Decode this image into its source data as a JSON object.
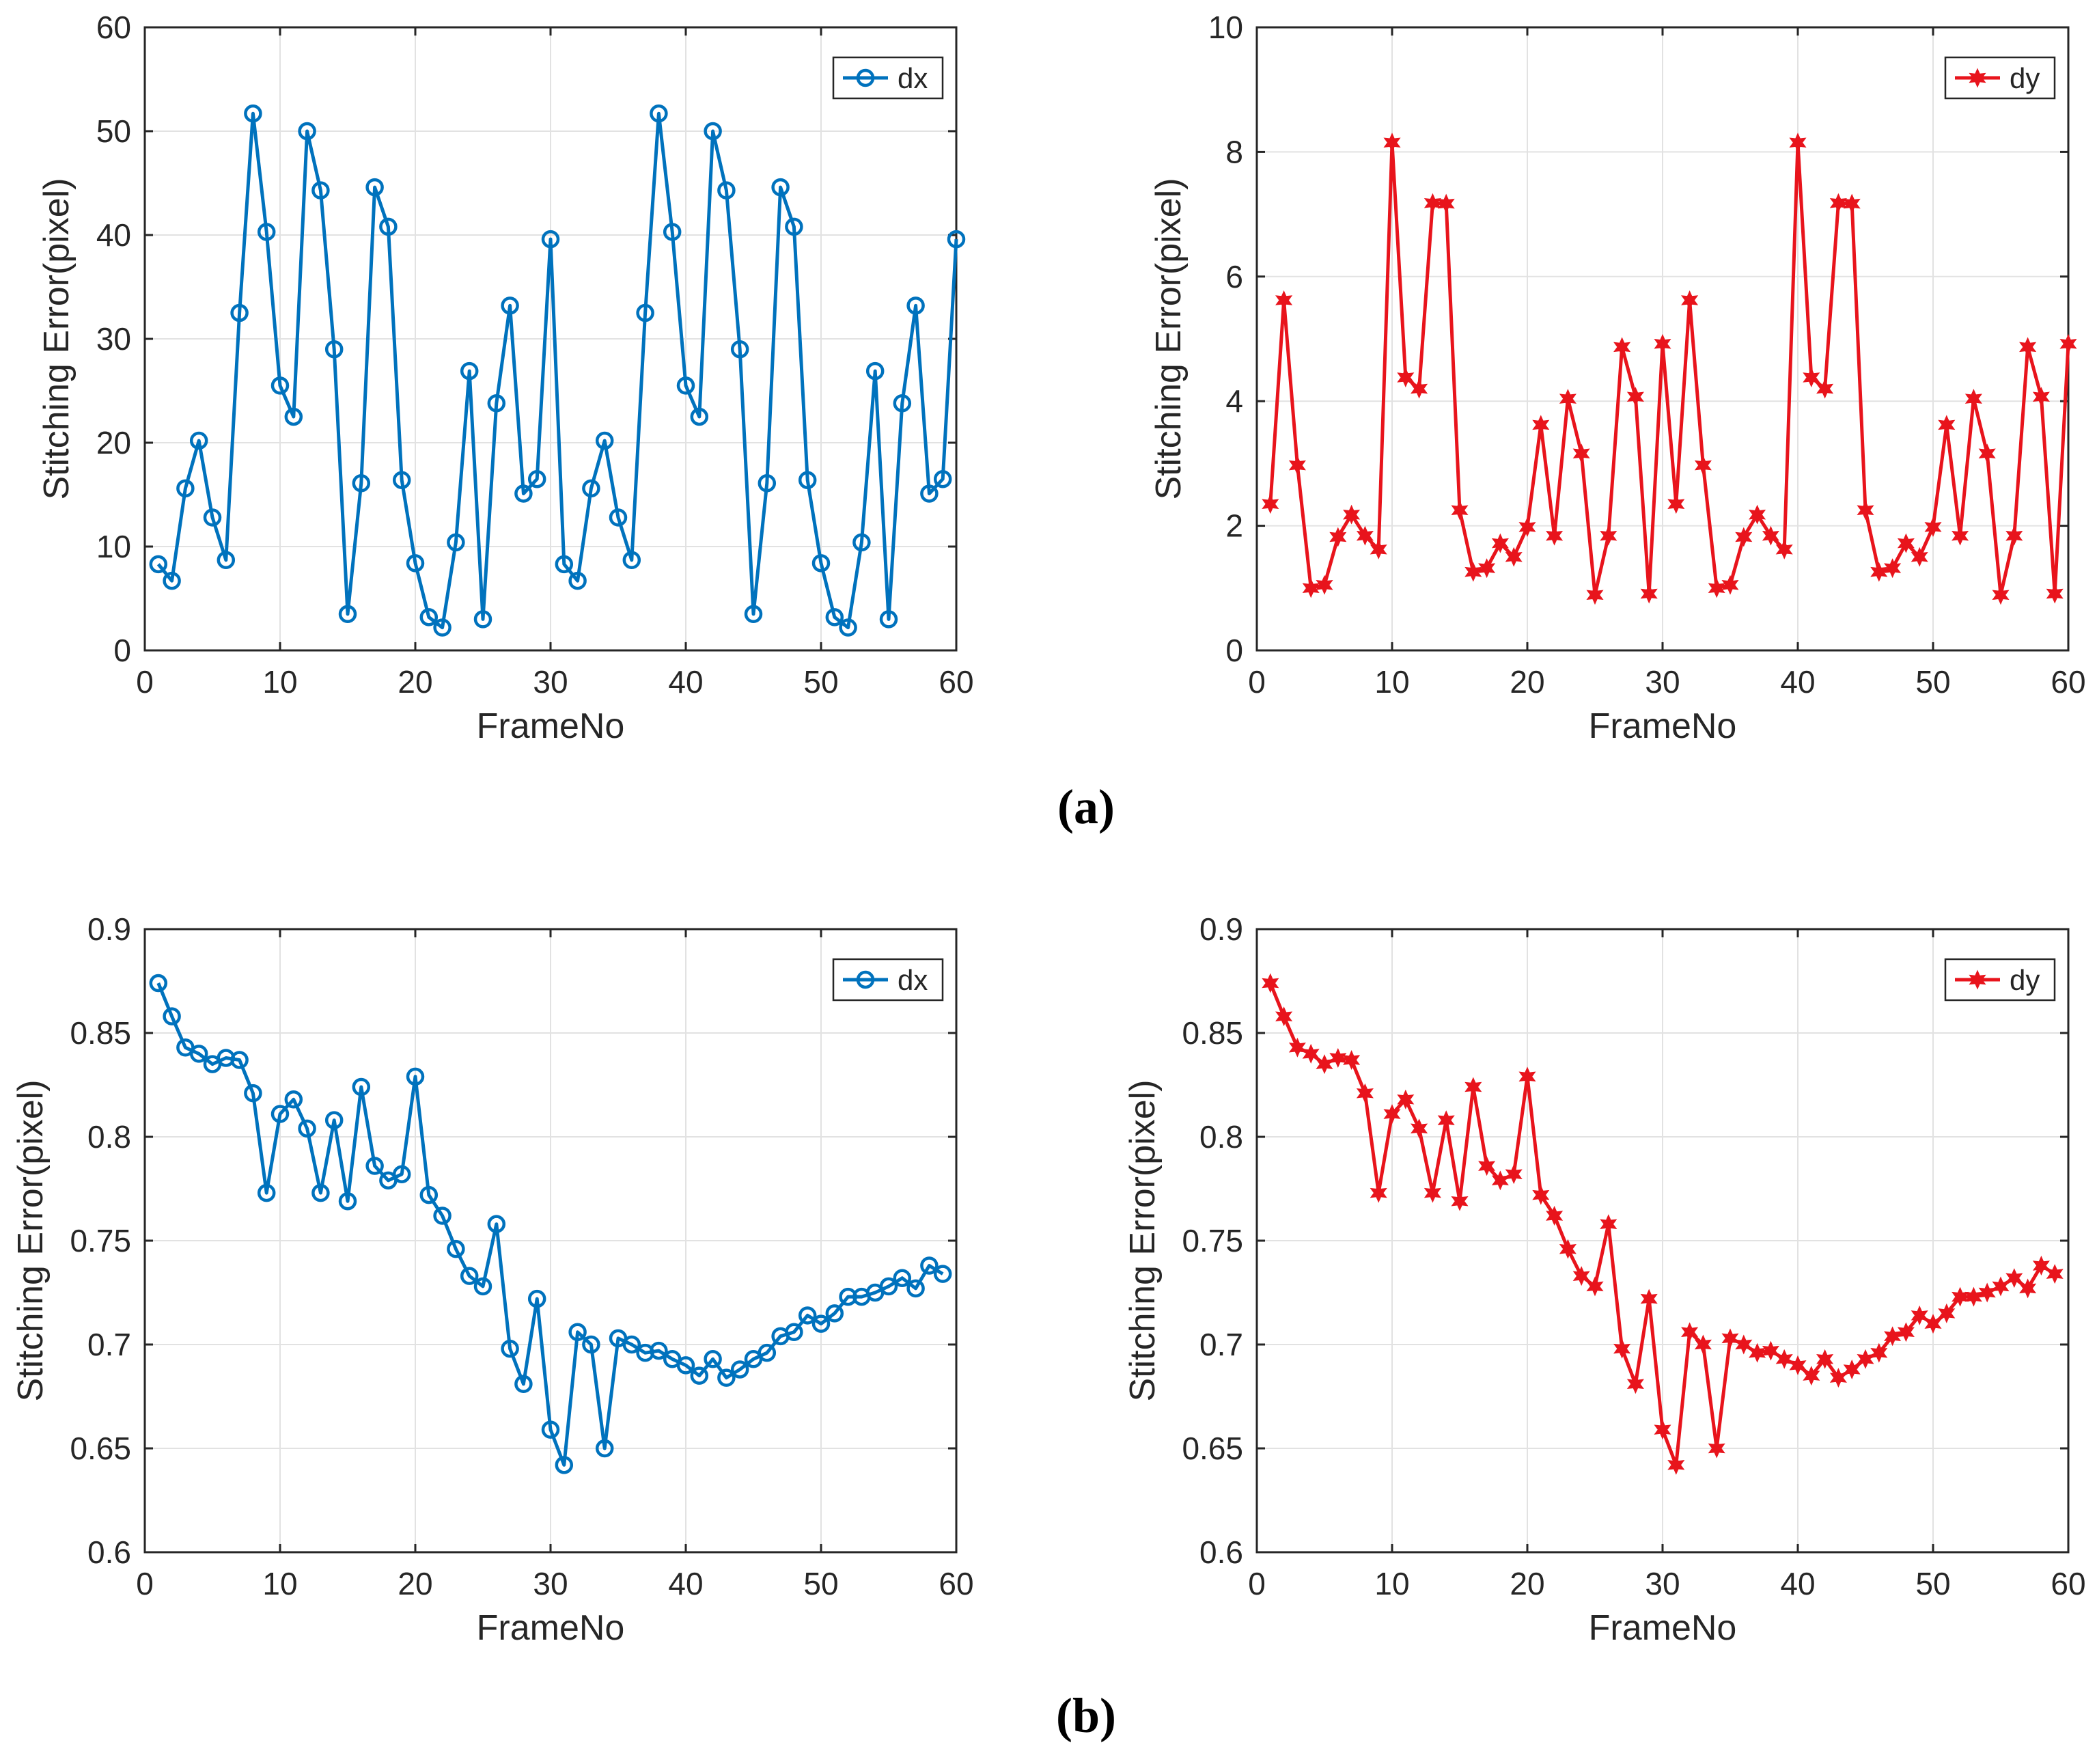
{
  "figure": {
    "captions": [
      "(a)",
      "(b)"
    ]
  },
  "chart_data": [
    {
      "type": "line",
      "panel": "a-left",
      "title": "",
      "xlabel": "FrameNo",
      "ylabel": "Stitching Error(pixel)",
      "xlim": [
        0,
        60
      ],
      "ylim": [
        0,
        60
      ],
      "xticks": [
        0,
        10,
        20,
        30,
        40,
        50,
        60
      ],
      "yticks": [
        0,
        10,
        20,
        30,
        40,
        50,
        60
      ],
      "grid": true,
      "legend": "top-right",
      "series": [
        {
          "name": "dx",
          "color": "#0072BD",
          "marker": "circle",
          "x": [
            1,
            2,
            3,
            4,
            5,
            6,
            7,
            8,
            9,
            10,
            11,
            12,
            13,
            14,
            15,
            16,
            17,
            18,
            19,
            20,
            21,
            22,
            23,
            24,
            25,
            26,
            27,
            28,
            29,
            30,
            31,
            32,
            33,
            34,
            35,
            36,
            37,
            38,
            39,
            40,
            41,
            42,
            43,
            44,
            45,
            46,
            47,
            48,
            49,
            50,
            51,
            52,
            53,
            54,
            55,
            56,
            57,
            58,
            59,
            60
          ],
          "values": [
            8.3,
            6.7,
            15.6,
            20.2,
            12.8,
            8.7,
            32.5,
            51.7,
            40.3,
            25.5,
            22.5,
            50.0,
            44.3,
            29.0,
            3.5,
            16.1,
            44.6,
            40.8,
            16.4,
            8.4,
            3.2,
            2.2,
            10.4,
            26.9,
            3.0,
            23.8,
            33.2,
            15.1,
            16.5,
            39.6,
            8.3,
            6.7,
            15.6,
            20.2,
            12.8,
            8.7,
            32.5,
            51.7,
            40.3,
            25.5,
            22.5,
            50.0,
            44.3,
            29.0,
            3.5,
            16.1,
            44.6,
            40.8,
            16.4,
            8.4,
            3.2,
            2.2,
            10.4,
            26.9,
            3.0,
            23.8,
            33.2,
            15.1,
            16.5,
            39.6
          ]
        }
      ]
    },
    {
      "type": "line",
      "panel": "a-right",
      "title": "",
      "xlabel": "FrameNo",
      "ylabel": "Stitching Error(pixel)",
      "xlim": [
        0,
        60
      ],
      "ylim": [
        0,
        10
      ],
      "xticks": [
        0,
        10,
        20,
        30,
        40,
        50,
        60
      ],
      "yticks": [
        0,
        2,
        4,
        6,
        8,
        10
      ],
      "grid": true,
      "legend": "top-right",
      "series": [
        {
          "name": "dy",
          "color": "#E8141C",
          "marker": "star",
          "x": [
            1,
            2,
            3,
            4,
            5,
            6,
            7,
            8,
            9,
            10,
            11,
            12,
            13,
            14,
            15,
            16,
            17,
            18,
            19,
            20,
            21,
            22,
            23,
            24,
            25,
            26,
            27,
            28,
            29,
            30,
            31,
            32,
            33,
            34,
            35,
            36,
            37,
            38,
            39,
            40,
            41,
            42,
            43,
            44,
            45,
            46,
            47,
            48,
            49,
            50,
            51,
            52,
            53,
            54,
            55,
            56,
            57,
            58,
            59,
            60
          ],
          "values": [
            2.35,
            5.62,
            2.97,
            1.0,
            1.05,
            1.82,
            2.18,
            1.84,
            1.62,
            8.15,
            4.38,
            4.2,
            7.18,
            7.17,
            2.25,
            1.26,
            1.32,
            1.72,
            1.5,
            1.98,
            3.62,
            1.84,
            4.04,
            3.16,
            0.89,
            1.84,
            4.87,
            4.07,
            0.91,
            4.92,
            2.35,
            5.62,
            2.97,
            1.0,
            1.05,
            1.82,
            2.18,
            1.84,
            1.62,
            8.15,
            4.38,
            4.2,
            7.18,
            7.17,
            2.25,
            1.26,
            1.32,
            1.72,
            1.5,
            1.98,
            3.62,
            1.84,
            4.04,
            3.16,
            0.89,
            1.84,
            4.87,
            4.07,
            0.91,
            4.92
          ]
        }
      ]
    },
    {
      "type": "line",
      "panel": "b-left",
      "title": "",
      "xlabel": "FrameNo",
      "ylabel": "Stitching Error(pixel)",
      "xlim": [
        0,
        60
      ],
      "ylim": [
        0.6,
        0.9
      ],
      "xticks": [
        0,
        10,
        20,
        30,
        40,
        50,
        60
      ],
      "yticks": [
        0.6,
        0.65,
        0.7,
        0.75,
        0.8,
        0.85,
        0.9
      ],
      "ytick_labels": [
        "0.6",
        "0.65",
        "0.7",
        "0.75",
        "0.8",
        "0.85",
        "0.9"
      ],
      "grid": true,
      "legend": "top-right",
      "series": [
        {
          "name": "dx",
          "color": "#0072BD",
          "marker": "circle",
          "x": [
            1,
            2,
            3,
            4,
            5,
            6,
            7,
            8,
            9,
            10,
            11,
            12,
            13,
            14,
            15,
            16,
            17,
            18,
            19,
            20,
            21,
            22,
            23,
            24,
            25,
            26,
            27,
            28,
            29,
            30,
            31,
            32,
            33,
            34,
            35,
            36,
            37,
            38,
            39,
            40,
            41,
            42,
            43,
            44,
            45,
            46,
            47,
            48,
            49,
            50,
            51,
            52,
            53,
            54,
            55,
            56,
            57,
            58,
            59
          ],
          "values": [
            0.874,
            0.858,
            0.843,
            0.84,
            0.835,
            0.838,
            0.837,
            0.821,
            0.773,
            0.811,
            0.818,
            0.804,
            0.773,
            0.808,
            0.769,
            0.824,
            0.786,
            0.779,
            0.782,
            0.829,
            0.772,
            0.762,
            0.746,
            0.733,
            0.728,
            0.758,
            0.698,
            0.681,
            0.722,
            0.659,
            0.642,
            0.706,
            0.7,
            0.65,
            0.703,
            0.7,
            0.696,
            0.697,
            0.693,
            0.69,
            0.685,
            0.693,
            0.684,
            0.688,
            0.693,
            0.696,
            0.704,
            0.706,
            0.714,
            0.71,
            0.715,
            0.723,
            0.723,
            0.725,
            0.728,
            0.732,
            0.727,
            0.738,
            0.734
          ]
        }
      ]
    },
    {
      "type": "line",
      "panel": "b-right",
      "title": "",
      "xlabel": "FrameNo",
      "ylabel": "Stitching Error(pixel)",
      "xlim": [
        0,
        60
      ],
      "ylim": [
        0.6,
        0.9
      ],
      "xticks": [
        0,
        10,
        20,
        30,
        40,
        50,
        60
      ],
      "yticks": [
        0.6,
        0.65,
        0.7,
        0.75,
        0.8,
        0.85,
        0.9
      ],
      "ytick_labels": [
        "0.6",
        "0.65",
        "0.7",
        "0.75",
        "0.8",
        "0.85",
        "0.9"
      ],
      "grid": true,
      "legend": "top-right",
      "series": [
        {
          "name": "dy",
          "color": "#E8141C",
          "marker": "star",
          "x": [
            1,
            2,
            3,
            4,
            5,
            6,
            7,
            8,
            9,
            10,
            11,
            12,
            13,
            14,
            15,
            16,
            17,
            18,
            19,
            20,
            21,
            22,
            23,
            24,
            25,
            26,
            27,
            28,
            29,
            30,
            31,
            32,
            33,
            34,
            35,
            36,
            37,
            38,
            39,
            40,
            41,
            42,
            43,
            44,
            45,
            46,
            47,
            48,
            49,
            50,
            51,
            52,
            53,
            54,
            55,
            56,
            57,
            58,
            59
          ],
          "values": [
            0.874,
            0.858,
            0.843,
            0.84,
            0.835,
            0.838,
            0.837,
            0.821,
            0.773,
            0.811,
            0.818,
            0.804,
            0.773,
            0.808,
            0.769,
            0.824,
            0.786,
            0.779,
            0.782,
            0.829,
            0.772,
            0.762,
            0.746,
            0.733,
            0.728,
            0.758,
            0.698,
            0.681,
            0.722,
            0.659,
            0.642,
            0.706,
            0.7,
            0.65,
            0.703,
            0.7,
            0.696,
            0.697,
            0.693,
            0.69,
            0.685,
            0.693,
            0.684,
            0.688,
            0.693,
            0.696,
            0.704,
            0.706,
            0.714,
            0.71,
            0.715,
            0.723,
            0.723,
            0.725,
            0.728,
            0.732,
            0.727,
            0.738,
            0.734
          ]
        }
      ]
    }
  ]
}
